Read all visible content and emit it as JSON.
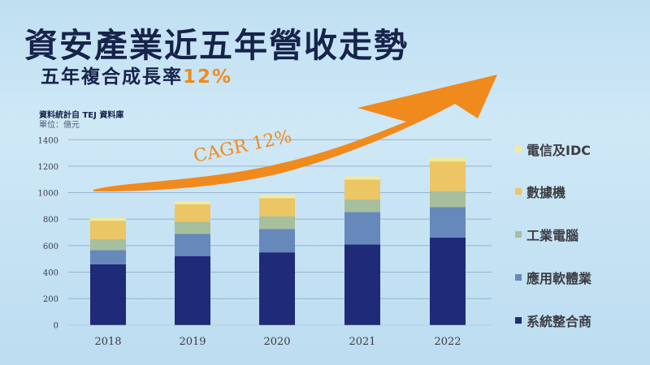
{
  "title": "資安產業近五年營收走勢",
  "subtitle": {
    "text": "五年複合成長率",
    "highlight": "12%"
  },
  "source": "資料統計自 TEJ 資料庫",
  "unit": "單位：億元",
  "colors": {
    "accent": "#f08a1c",
    "title": "#16234a"
  },
  "chart_data": {
    "type": "bar",
    "stacked": true,
    "categories": [
      "2018",
      "2019",
      "2020",
      "2021",
      "2022"
    ],
    "ylim": [
      0,
      1400
    ],
    "yticks": [
      0,
      200,
      400,
      600,
      800,
      1000,
      1200,
      1400
    ],
    "grid": true,
    "legend_position": "right",
    "annotation": "CAGR 12%",
    "series": [
      {
        "name": "系統整合商",
        "color": "#1f2b78",
        "values": [
          458,
          521,
          549,
          609,
          661
        ]
      },
      {
        "name": "應用軟體業",
        "color": "#6688bb",
        "values": [
          107,
          168,
          177,
          245,
          229
        ]
      },
      {
        "name": "工業電腦",
        "color": "#a7bf9d",
        "values": [
          84,
          91,
          96,
          95,
          123
        ]
      },
      {
        "name": "數據機",
        "color": "#ecc665",
        "values": [
          139,
          133,
          137,
          149,
          223
        ]
      },
      {
        "name": "電信及IDC",
        "color": "#f2eb9a",
        "values": [
          20,
          22,
          24,
          24,
          26
        ]
      }
    ]
  }
}
